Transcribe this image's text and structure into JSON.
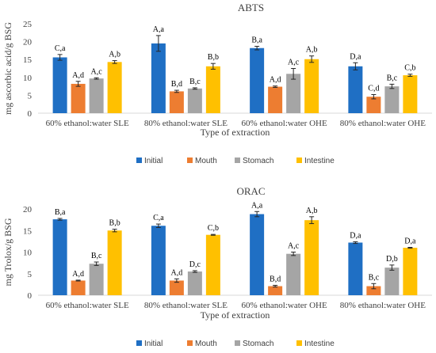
{
  "chart_data": [
    {
      "type": "bar",
      "title": "ABTS",
      "xlabel": "Type of extraction",
      "ylabel": "mg ascorbic acid/g BSG",
      "ylim": [
        0,
        25
      ],
      "yticks": [
        0,
        5,
        10,
        15,
        20,
        25
      ],
      "grid": false,
      "legend": "bottom",
      "categories": [
        "60% ethanol:water SLE",
        "80% ethanol:water SLE",
        "60% ethanol:water OHE",
        "80% ethanol:water OHE"
      ],
      "series": [
        {
          "name": "Initial",
          "color": "#1f6fc4",
          "values": [
            15.6,
            19.5,
            18.2,
            13.1
          ],
          "errors": [
            0.8,
            2.2,
            0.5,
            1.0
          ],
          "labels": [
            "C,a",
            "A,a",
            "B,a",
            "D,a"
          ]
        },
        {
          "name": "Mouth",
          "color": "#ed7d31",
          "values": [
            8.2,
            6.1,
            7.4,
            4.6
          ],
          "errors": [
            0.7,
            0.3,
            0.2,
            0.6
          ],
          "labels": [
            "A,d",
            "B,d",
            "A,d",
            "C,d"
          ]
        },
        {
          "name": "Stomach",
          "color": "#a5a5a5",
          "values": [
            9.7,
            6.9,
            11.0,
            7.5
          ],
          "errors": [
            0.2,
            0.2,
            1.5,
            0.6
          ],
          "labels": [
            "A,c",
            "B,c",
            "A,c",
            "B,c"
          ]
        },
        {
          "name": "Intestine",
          "color": "#ffc000",
          "values": [
            14.3,
            13.1,
            15.1,
            10.6
          ],
          "errors": [
            0.4,
            0.8,
            0.9,
            0.3
          ],
          "labels": [
            "A,b",
            "B,b",
            "A,b",
            "C,b"
          ]
        }
      ]
    },
    {
      "type": "bar",
      "title": "ORAC",
      "xlabel": "Type of extraction",
      "ylabel": "mg Trolox/g BSG",
      "ylim": [
        0,
        20
      ],
      "yticks": [
        0,
        5,
        10,
        15,
        20
      ],
      "grid": false,
      "legend": "bottom",
      "categories": [
        "60% ethanol:water SLE",
        "80% ethanol:water SLE",
        "60% ethanol:water OHE",
        "80% ethanol:water OHE"
      ],
      "series": [
        {
          "name": "Initial",
          "color": "#1f6fc4",
          "values": [
            17.6,
            16.1,
            18.8,
            12.2
          ],
          "errors": [
            0.2,
            0.4,
            0.6,
            0.2
          ],
          "labels": [
            "B,a",
            "C,a",
            "A,a",
            "D,a"
          ]
        },
        {
          "name": "Mouth",
          "color": "#ed7d31",
          "values": [
            3.4,
            3.4,
            2.1,
            2.1
          ],
          "errors": [
            0.1,
            0.4,
            0.2,
            0.6
          ],
          "labels": [
            "A,d",
            "A,d",
            "B,d",
            "B,c"
          ]
        },
        {
          "name": "Stomach",
          "color": "#a5a5a5",
          "values": [
            7.3,
            5.5,
            9.6,
            6.4
          ],
          "errors": [
            0.4,
            0.2,
            0.4,
            0.6
          ],
          "labels": [
            "B,c",
            "D,c",
            "A,c",
            "D,b"
          ]
        },
        {
          "name": "Intestine",
          "color": "#ffc000",
          "values": [
            15.0,
            14.0,
            17.4,
            11.0
          ],
          "errors": [
            0.3,
            0.1,
            0.8,
            0.1
          ],
          "labels": [
            "B,b",
            "C,b",
            "A,b",
            "D,a"
          ]
        }
      ]
    }
  ]
}
